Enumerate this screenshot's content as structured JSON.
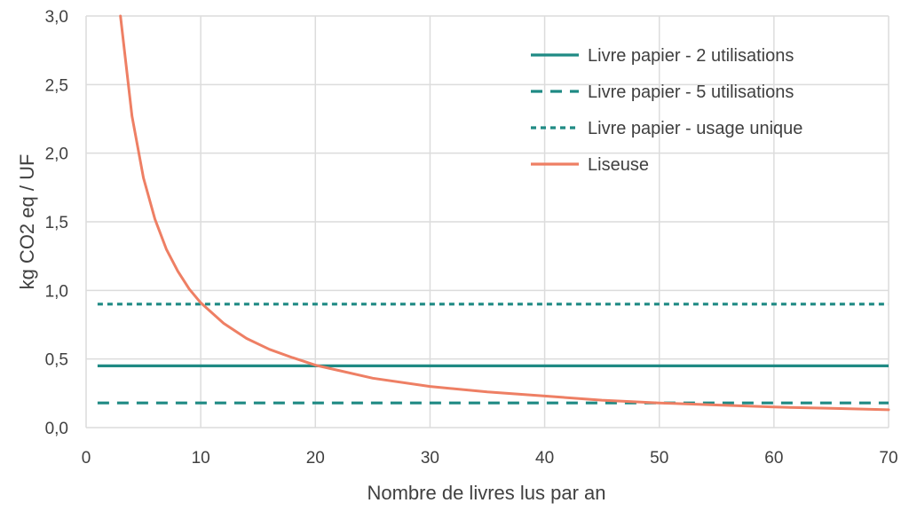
{
  "chart_data": {
    "type": "line",
    "xlabel": "Nombre de livres lus par an",
    "ylabel": "kg CO2 eq / UF",
    "xlim": [
      0,
      70
    ],
    "ylim": [
      0,
      3.0
    ],
    "x_ticks": [
      "0",
      "10",
      "20",
      "30",
      "40",
      "50",
      "60",
      "70"
    ],
    "y_ticks": [
      "0,0",
      "0,5",
      "1,0",
      "1,5",
      "2,0",
      "2,5",
      "3,0"
    ],
    "x_tick_values": [
      0,
      10,
      20,
      30,
      40,
      50,
      60,
      70
    ],
    "y_tick_values": [
      0,
      0.5,
      1.0,
      1.5,
      2.0,
      2.5,
      3.0
    ],
    "grid": true,
    "legend_position": "top-right",
    "series": [
      {
        "name": "Livre papier - 2 utilisations",
        "color": "#1f8a84",
        "dash": "solid",
        "x": [
          1,
          70
        ],
        "y": [
          0.45,
          0.45
        ]
      },
      {
        "name": "Livre papier - 5 utilisations",
        "color": "#1f8a84",
        "dash": "dashed",
        "x": [
          1,
          70
        ],
        "y": [
          0.18,
          0.18
        ]
      },
      {
        "name": "Livre papier - usage unique",
        "color": "#1f8a84",
        "dash": "dotted",
        "x": [
          1,
          70
        ],
        "y": [
          0.9,
          0.9
        ]
      },
      {
        "name": "Liseuse",
        "color": "#ee7f64",
        "dash": "solid",
        "x": [
          3,
          4,
          5,
          6,
          7,
          8,
          9,
          10,
          12,
          14,
          16,
          18,
          20,
          25,
          30,
          35,
          40,
          45,
          50,
          55,
          60,
          65,
          70
        ],
        "y": [
          3.0,
          2.27,
          1.82,
          1.52,
          1.3,
          1.14,
          1.01,
          0.91,
          0.76,
          0.65,
          0.57,
          0.51,
          0.455,
          0.36,
          0.3,
          0.26,
          0.23,
          0.2,
          0.18,
          0.165,
          0.15,
          0.14,
          0.13
        ]
      }
    ]
  }
}
